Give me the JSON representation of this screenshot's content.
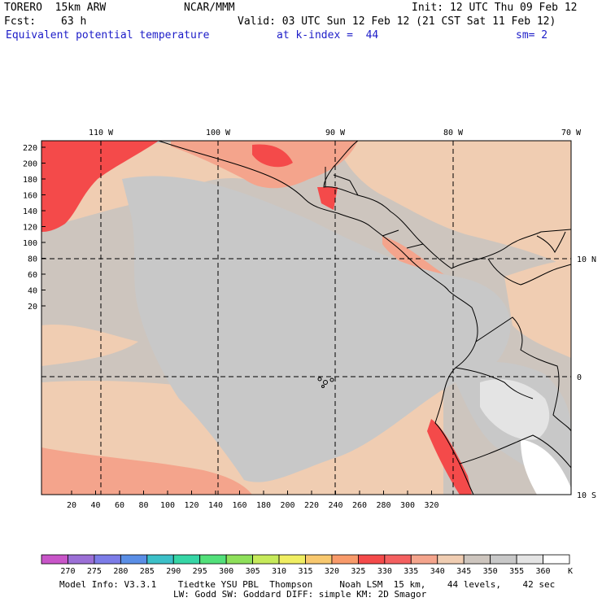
{
  "header": {
    "model": "TORERO  15km ARW",
    "center": "NCAR/MMM",
    "init": "Init: 12 UTC Thu 09 Feb 12",
    "fcst_label": "Fcst:",
    "fcst_value": "63 h",
    "valid": "Valid: 03 UTC Sun 12 Feb 12 (21 CST Sat 11 Feb 12)",
    "field": "Equivalent potential temperature",
    "level": "at k-index =  44",
    "smooth": "sm= 2"
  },
  "map": {
    "lon_labels": [
      "110 W",
      "100 W",
      "90 W",
      "80 W",
      "70 W"
    ],
    "lat_labels": [
      "10 N",
      "0",
      "10 S"
    ],
    "x_ticks": [
      "20",
      "40",
      "60",
      "80",
      "100",
      "120",
      "140",
      "160",
      "180",
      "200",
      "220",
      "240",
      "260",
      "280",
      "300",
      "320"
    ],
    "y_ticks": [
      "220",
      "200",
      "180",
      "160",
      "140",
      "120",
      "100",
      "80",
      "60",
      "40",
      "20"
    ]
  },
  "colorbar": {
    "labels": [
      "270",
      "275",
      "280",
      "285",
      "290",
      "295",
      "300",
      "305",
      "310",
      "315",
      "320",
      "325",
      "330",
      "335",
      "340",
      "345",
      "350",
      "355",
      "360"
    ],
    "unit": "K",
    "colors": [
      "#c855c8",
      "#9b6fd6",
      "#7c7ce8",
      "#5a8ee6",
      "#3cc0c8",
      "#36d6a6",
      "#52e07a",
      "#8ee05a",
      "#c6ea5a",
      "#f0ee62",
      "#f8c86e",
      "#f89a6a",
      "#f44a4a",
      "#f46060",
      "#f4a48c",
      "#f0cdb2",
      "#cdc5be",
      "#c8c8c8",
      "#e4e4e4",
      "#ffffff"
    ]
  },
  "footer": {
    "line1": "Model Info: V3.3.1    Tiedtke YSU PBL  Thompson     Noah LSM  15 km,    44 levels,    42 sec",
    "line2": "LW: Godd SW: Goddard DIFF: simple KM: 2D Smagor"
  }
}
